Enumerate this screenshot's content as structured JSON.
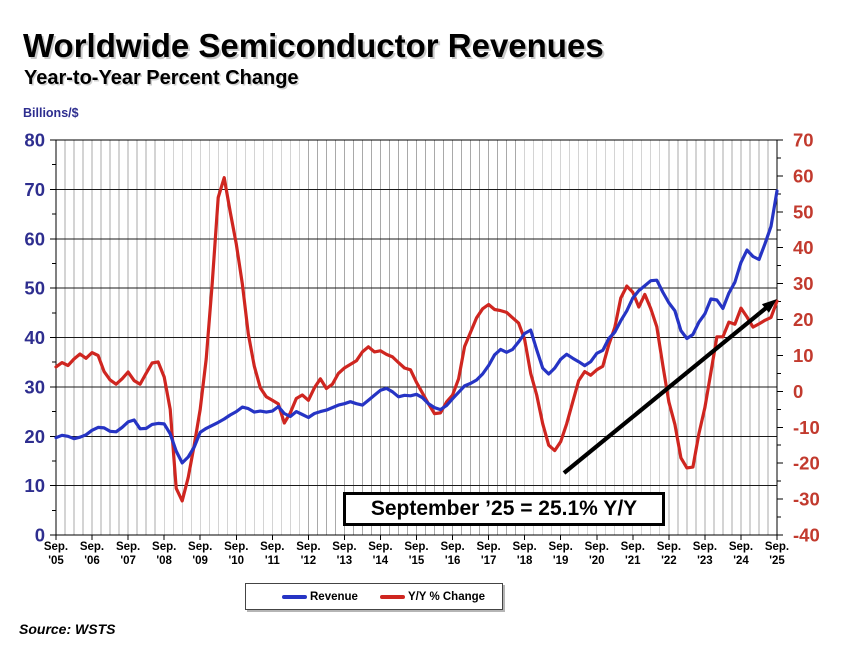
{
  "header": {
    "title": "Worldwide Semiconductor Revenues",
    "subtitle": "Year-to-Year Percent Change"
  },
  "annotation": {
    "text": "September ’25 = 25.1% Y/Y"
  },
  "source_note": "Source: WSTS",
  "legend": {
    "items": [
      {
        "label": "Revenue",
        "color": "#2634c4"
      },
      {
        "label": "Y/Y % Change",
        "color": "#cf2620"
      }
    ]
  },
  "colors": {
    "revenue_line": "#2634c4",
    "yoy_line": "#cf2620",
    "left_axis_label": "#2e2e8f",
    "right_axis_label": "#c23a2e",
    "grid_minor": "#a9a9a9",
    "grid_major": "#1a1a1a",
    "arrow": "#000000"
  },
  "chart_data": {
    "type": "line",
    "title": "Worldwide Semiconductor Revenues",
    "subtitle": "Year-to-Year Percent Change",
    "x_range": "Sep 2005 - Sep 2025 (monthly, 3-month average)",
    "grid": "vertical quarterly gray lines, horizontal black lines every 10 (left scale)",
    "legend_position": "bottom-center",
    "x_tick_labels": [
      [
        "Sep.",
        "'05"
      ],
      [
        "Sep.",
        "'06"
      ],
      [
        "Sep.",
        "'07"
      ],
      [
        "Sep.",
        "'08"
      ],
      [
        "Sep.",
        "'09"
      ],
      [
        "Sep.",
        "'10"
      ],
      [
        "Sep.",
        "'11"
      ],
      [
        "Sep.",
        "'12"
      ],
      [
        "Sep.",
        "'13"
      ],
      [
        "Sep.",
        "'14"
      ],
      [
        "Sep.",
        "'15"
      ],
      [
        "Sep.",
        "'16"
      ],
      [
        "Sep.",
        "'17"
      ],
      [
        "Sep.",
        "'18"
      ],
      [
        "Sep.",
        "'19"
      ],
      [
        "Sep.",
        "'20"
      ],
      [
        "Sep.",
        "'21"
      ],
      [
        "Sep.",
        "'22"
      ],
      [
        "Sep.",
        "'23"
      ],
      [
        "Sep.",
        "'24"
      ],
      [
        "Sep.",
        "'25"
      ]
    ],
    "y_left": {
      "label": "Billions/$",
      "min": 0,
      "max": 80,
      "step": 10,
      "ticks": [
        0,
        10,
        20,
        30,
        40,
        50,
        60,
        70,
        80
      ]
    },
    "y_right": {
      "label": "Y/Y % Change",
      "min": -40,
      "max": 70,
      "step": 10,
      "ticks": [
        70,
        60,
        50,
        40,
        30,
        20,
        10,
        0,
        -10,
        -20,
        -30,
        -40
      ]
    },
    "months_total": 240,
    "series": [
      {
        "name": "Y/Y % Change",
        "axis": "right",
        "color": "#cf2620",
        "month_step": 2,
        "values": [
          6.8,
          8.0,
          7.2,
          9.0,
          10.4,
          9.2,
          10.8,
          10.0,
          5.5,
          3.2,
          2.0,
          3.5,
          5.4,
          3.0,
          2.0,
          5.0,
          7.9,
          8.2,
          4.0,
          -5.0,
          -27.0,
          -30.5,
          -24.0,
          -15.0,
          -5.0,
          9.0,
          30.0,
          54.0,
          59.5,
          50.0,
          41.0,
          30.0,
          16.0,
          7.0,
          1.0,
          -1.5,
          -2.5,
          -3.5,
          -8.8,
          -6.0,
          -2.0,
          -1.0,
          -2.5,
          1.0,
          3.5,
          0.8,
          2.0,
          5.0,
          6.5,
          7.5,
          8.5,
          11.0,
          12.4,
          11.0,
          11.3,
          10.3,
          9.6,
          8.0,
          6.5,
          6.0,
          2.5,
          -0.5,
          -3.5,
          -6.2,
          -6.0,
          -3.0,
          -1.0,
          3.5,
          12.5,
          16.5,
          20.5,
          23.0,
          24.2,
          22.8,
          22.5,
          22.0,
          20.5,
          19.0,
          14.5,
          5.0,
          -1.0,
          -9.0,
          -15.0,
          -16.5,
          -14.0,
          -9.0,
          -3.0,
          3.0,
          5.5,
          4.5,
          6.0,
          7.0,
          13.0,
          17.8,
          26.0,
          29.3,
          27.6,
          23.5,
          27.0,
          23.0,
          18.0,
          7.3,
          -3.0,
          -9.2,
          -18.5,
          -21.3,
          -21.1,
          -11.8,
          -4.5,
          5.3,
          15.2,
          15.2,
          19.3,
          18.7,
          23.2,
          20.7,
          17.9,
          18.8,
          19.8,
          20.6,
          25.1
        ]
      },
      {
        "name": "Revenue",
        "axis": "left",
        "color": "#2634c4",
        "month_step": 2,
        "values": [
          19.7,
          20.2,
          20.0,
          19.5,
          19.8,
          20.3,
          21.2,
          21.8,
          21.7,
          21.0,
          20.9,
          21.8,
          22.9,
          23.3,
          21.5,
          21.6,
          22.4,
          22.6,
          22.5,
          20.5,
          17.0,
          14.6,
          15.8,
          17.8,
          20.8,
          21.6,
          22.2,
          22.8,
          23.5,
          24.3,
          25.0,
          25.9,
          25.6,
          24.9,
          25.1,
          24.9,
          25.1,
          26.0,
          24.6,
          24.0,
          25.0,
          24.4,
          23.8,
          24.6,
          25.0,
          25.3,
          25.8,
          26.3,
          26.6,
          27.0,
          26.6,
          26.3,
          27.3,
          28.3,
          29.3,
          29.7,
          29.0,
          28.0,
          28.3,
          28.2,
          28.5,
          27.8,
          26.6,
          25.8,
          25.4,
          26.2,
          27.6,
          28.9,
          30.2,
          30.7,
          31.4,
          32.6,
          34.3,
          36.5,
          37.6,
          37.0,
          37.6,
          39.1,
          40.8,
          41.5,
          37.5,
          33.8,
          32.6,
          33.8,
          35.6,
          36.6,
          35.8,
          35.1,
          34.3,
          35.1,
          36.8,
          37.4,
          39.8,
          41.1,
          43.4,
          45.4,
          48.0,
          49.5,
          50.5,
          51.5,
          51.6,
          49.2,
          47.0,
          45.4,
          41.4,
          39.8,
          40.6,
          43.1,
          44.8,
          47.8,
          47.6,
          45.9,
          49.0,
          51.2,
          55.2,
          57.7,
          56.4,
          55.8,
          59.0,
          62.5,
          69.7
        ]
      }
    ],
    "annotations": [
      {
        "type": "callout",
        "text": "September ’25 = 25.1% Y/Y"
      },
      {
        "type": "arrow",
        "points_to": "end of Y/Y % Change line at 25.1%"
      }
    ]
  }
}
